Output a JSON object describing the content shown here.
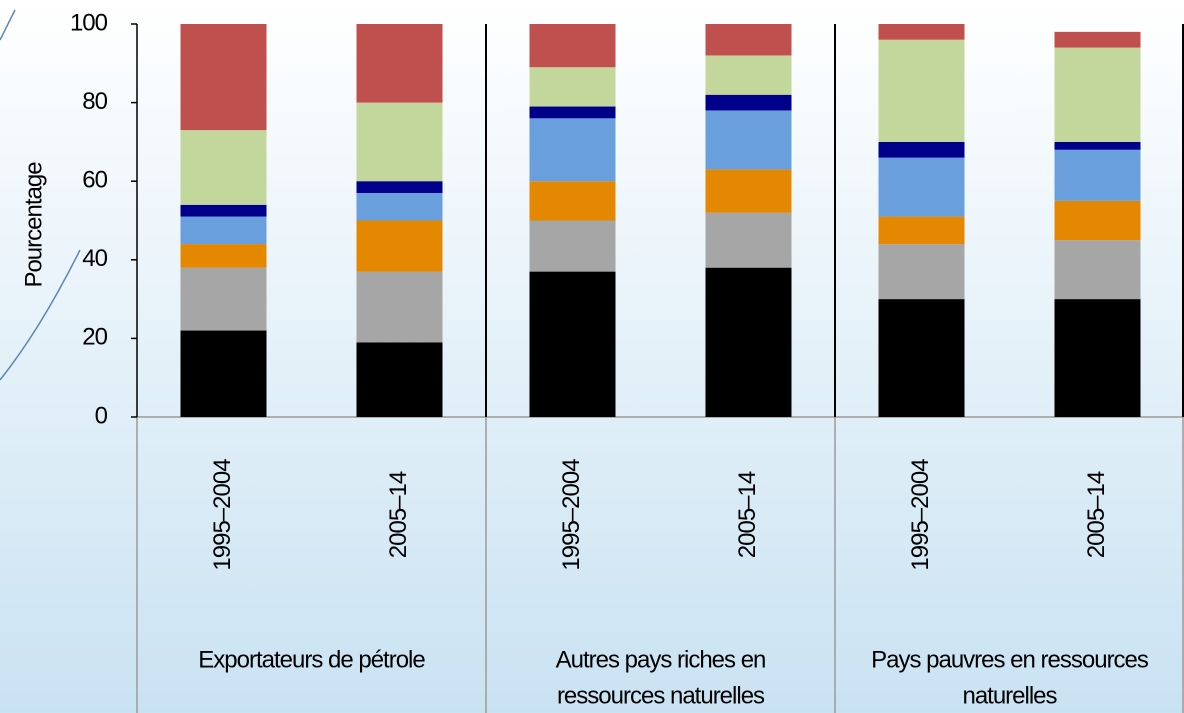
{
  "chart_data": {
    "type": "stacked_bar",
    "ylabel": "Pourcentage",
    "categories": [
      "1995–2004",
      "2005–14",
      "1995–2004",
      "2005–14",
      "1995–2004",
      "2005–14"
    ],
    "groups": [
      [
        "Exportateurs de pétrole"
      ],
      [
        "Autres pays riches en",
        "ressources naturelles"
      ],
      [
        "Pays pauvres en ressources",
        "naturelles"
      ]
    ],
    "series": [
      {
        "color": "#000000",
        "values": [
          22,
          19,
          37,
          38,
          30,
          30
        ]
      },
      {
        "color": "#a6a6a6",
        "values": [
          16,
          18,
          13,
          14,
          14,
          15
        ]
      },
      {
        "color": "#e38800",
        "values": [
          6,
          13,
          10,
          11,
          7,
          10
        ]
      },
      {
        "color": "#6a9fdd",
        "values": [
          7,
          7,
          16,
          15,
          15,
          13
        ]
      },
      {
        "color": "#00008b",
        "values": [
          3,
          3,
          3,
          4,
          4,
          2
        ]
      },
      {
        "color": "#c3d69b",
        "values": [
          19,
          20,
          10,
          10,
          26,
          24
        ]
      },
      {
        "color": "#c0504d",
        "values": [
          27,
          20,
          11,
          8,
          4,
          4
        ]
      }
    ],
    "ylim": [
      0,
      100
    ],
    "yticks": [
      0,
      20,
      40,
      60,
      80,
      100
    ]
  }
}
